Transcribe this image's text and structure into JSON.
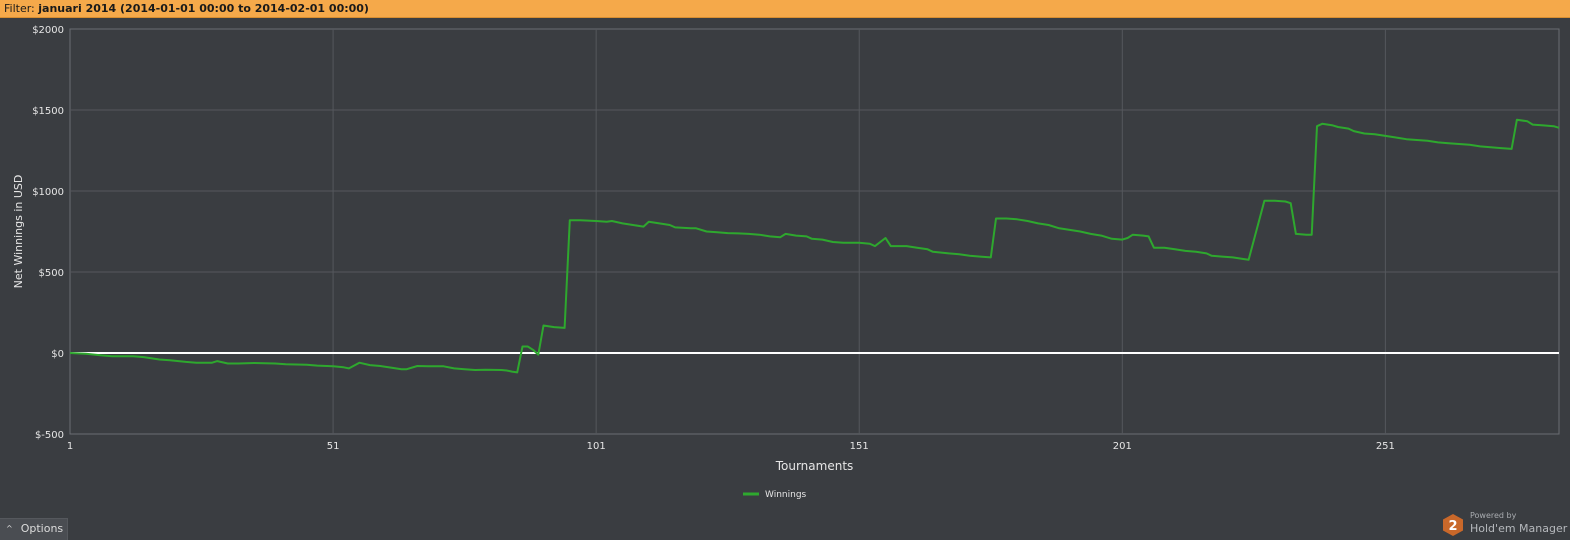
{
  "filter": {
    "label": "Filter: ",
    "value": "januari 2014 (2014-01-01 00:00 to 2014-02-01 00:00)"
  },
  "chart_data": {
    "type": "line",
    "title": "",
    "xlabel": "Tournaments",
    "ylabel": "Net Winnings in USD",
    "xlim": [
      1,
      284
    ],
    "ylim": [
      -500,
      2000
    ],
    "xticks": [
      1,
      51,
      101,
      151,
      201,
      251
    ],
    "yticks": [
      -500,
      0,
      500,
      1000,
      1500,
      2000
    ],
    "ytick_labels": [
      "$-500",
      "$0",
      "$500",
      "$1000",
      "$1500",
      "$2000"
    ],
    "grid": true,
    "zero_line": true,
    "legend_position": "bottom-center",
    "series": [
      {
        "name": "Winnings",
        "color": "#2ea82e",
        "points": [
          [
            1,
            0
          ],
          [
            4,
            -5
          ],
          [
            7,
            -15
          ],
          [
            9,
            -20
          ],
          [
            13,
            -20
          ],
          [
            15,
            -25
          ],
          [
            18,
            -40
          ],
          [
            20,
            -45
          ],
          [
            23,
            -55
          ],
          [
            25,
            -60
          ],
          [
            28,
            -60
          ],
          [
            29,
            -50
          ],
          [
            31,
            -65
          ],
          [
            33,
            -65
          ],
          [
            36,
            -62
          ],
          [
            40,
            -65
          ],
          [
            42,
            -70
          ],
          [
            46,
            -72
          ],
          [
            48,
            -78
          ],
          [
            51,
            -82
          ],
          [
            53,
            -88
          ],
          [
            54,
            -95
          ],
          [
            56,
            -60
          ],
          [
            58,
            -75
          ],
          [
            60,
            -80
          ],
          [
            62,
            -90
          ],
          [
            64,
            -100
          ],
          [
            65,
            -100
          ],
          [
            67,
            -80
          ],
          [
            69,
            -82
          ],
          [
            72,
            -82
          ],
          [
            74,
            -95
          ],
          [
            76,
            -100
          ],
          [
            78,
            -105
          ],
          [
            80,
            -103
          ],
          [
            83,
            -105
          ],
          [
            84,
            -108
          ],
          [
            85,
            -115
          ],
          [
            86,
            -120
          ],
          [
            87,
            40
          ],
          [
            88,
            40
          ],
          [
            89,
            20
          ],
          [
            90,
            -10
          ],
          [
            91,
            170
          ],
          [
            93,
            160
          ],
          [
            95,
            155
          ],
          [
            96,
            820
          ],
          [
            98,
            820
          ],
          [
            101,
            815
          ],
          [
            103,
            810
          ],
          [
            104,
            815
          ],
          [
            106,
            800
          ],
          [
            108,
            790
          ],
          [
            110,
            780
          ],
          [
            111,
            810
          ],
          [
            113,
            800
          ],
          [
            115,
            790
          ],
          [
            116,
            775
          ],
          [
            119,
            770
          ],
          [
            120,
            770
          ],
          [
            122,
            750
          ],
          [
            124,
            745
          ],
          [
            126,
            740
          ],
          [
            128,
            738
          ],
          [
            130,
            735
          ],
          [
            132,
            730
          ],
          [
            134,
            720
          ],
          [
            136,
            715
          ],
          [
            137,
            735
          ],
          [
            139,
            725
          ],
          [
            141,
            720
          ],
          [
            142,
            705
          ],
          [
            144,
            700
          ],
          [
            146,
            685
          ],
          [
            148,
            680
          ],
          [
            151,
            680
          ],
          [
            153,
            675
          ],
          [
            154,
            660
          ],
          [
            156,
            710
          ],
          [
            157,
            660
          ],
          [
            159,
            660
          ],
          [
            160,
            660
          ],
          [
            162,
            650
          ],
          [
            164,
            640
          ],
          [
            165,
            625
          ],
          [
            168,
            615
          ],
          [
            170,
            610
          ],
          [
            172,
            600
          ],
          [
            174,
            595
          ],
          [
            176,
            590
          ],
          [
            177,
            830
          ],
          [
            179,
            830
          ],
          [
            181,
            825
          ],
          [
            183,
            815
          ],
          [
            185,
            800
          ],
          [
            187,
            790
          ],
          [
            189,
            770
          ],
          [
            191,
            760
          ],
          [
            193,
            750
          ],
          [
            195,
            735
          ],
          [
            197,
            725
          ],
          [
            199,
            705
          ],
          [
            201,
            700
          ],
          [
            202,
            710
          ],
          [
            203,
            730
          ],
          [
            205,
            725
          ],
          [
            206,
            720
          ],
          [
            207,
            650
          ],
          [
            209,
            650
          ],
          [
            211,
            640
          ],
          [
            213,
            630
          ],
          [
            215,
            625
          ],
          [
            217,
            615
          ],
          [
            218,
            600
          ],
          [
            220,
            595
          ],
          [
            222,
            590
          ],
          [
            224,
            580
          ],
          [
            225,
            575
          ],
          [
            228,
            940
          ],
          [
            230,
            940
          ],
          [
            232,
            935
          ],
          [
            233,
            925
          ],
          [
            234,
            735
          ],
          [
            236,
            730
          ],
          [
            237,
            730
          ],
          [
            238,
            1400
          ],
          [
            239,
            1415
          ],
          [
            241,
            1405
          ],
          [
            242,
            1395
          ],
          [
            244,
            1385
          ],
          [
            245,
            1370
          ],
          [
            247,
            1355
          ],
          [
            249,
            1350
          ],
          [
            251,
            1340
          ],
          [
            253,
            1330
          ],
          [
            255,
            1320
          ],
          [
            257,
            1315
          ],
          [
            259,
            1310
          ],
          [
            261,
            1300
          ],
          [
            263,
            1295
          ],
          [
            265,
            1290
          ],
          [
            267,
            1285
          ],
          [
            269,
            1275
          ],
          [
            271,
            1270
          ],
          [
            273,
            1265
          ],
          [
            275,
            1260
          ],
          [
            276,
            1440
          ],
          [
            278,
            1430
          ],
          [
            279,
            1410
          ],
          [
            281,
            1405
          ],
          [
            283,
            1400
          ],
          [
            284,
            1390
          ]
        ]
      }
    ]
  },
  "options": {
    "label": "Options"
  },
  "brand": {
    "powered": "Powered by",
    "name": "Hold'em Manager",
    "logo_digit": "2"
  }
}
